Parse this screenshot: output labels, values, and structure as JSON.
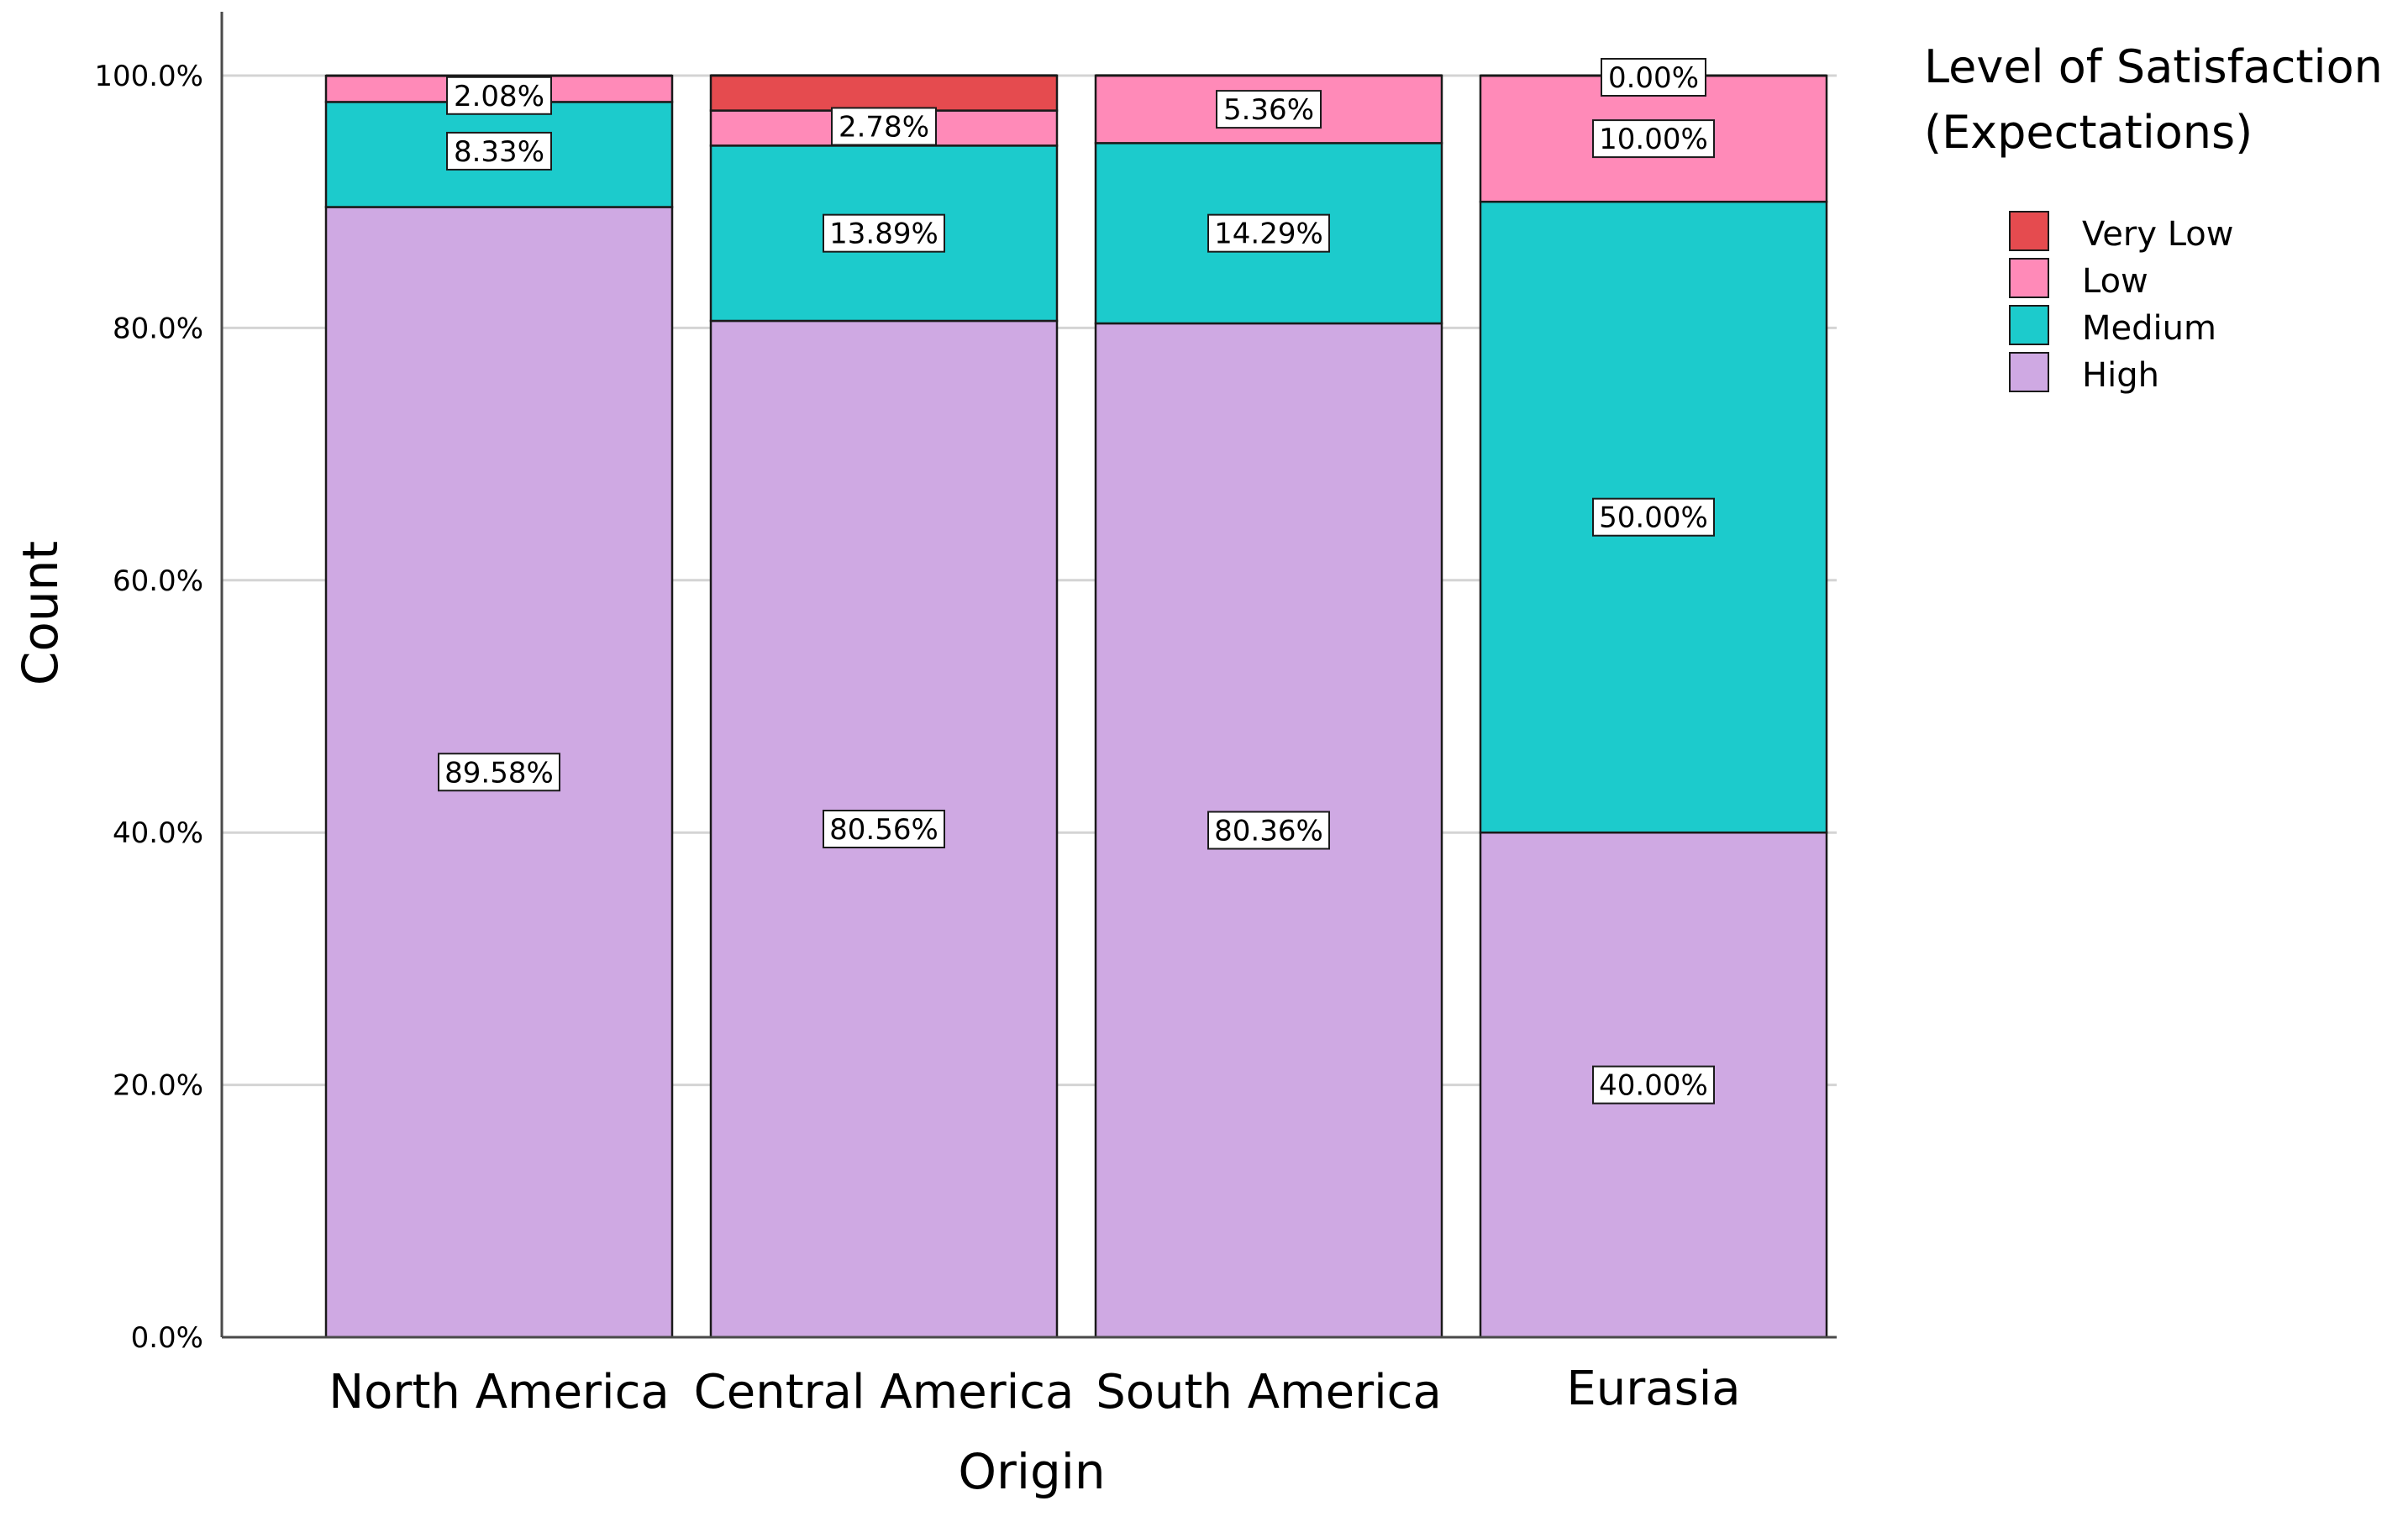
{
  "chart_data": {
    "type": "bar",
    "stacked": true,
    "xlabel": "Origin",
    "ylabel": "Count",
    "ylim": [
      0,
      100
    ],
    "y_ticks": [
      "0.0%",
      "20.0%",
      "40.0%",
      "60.0%",
      "80.0%",
      "100.0%"
    ],
    "y_tick_values": [
      0,
      20,
      40,
      60,
      80,
      100
    ],
    "categories": [
      "North America",
      "Central America",
      "South America",
      "Eurasia"
    ],
    "legend": {
      "title_lines": [
        "Level of Satisfaction",
        "(Expectations)"
      ],
      "placement": "top-right"
    },
    "series": [
      {
        "name": "High",
        "color": "#CFA9E3",
        "values": [
          89.58,
          80.56,
          80.36,
          40.0
        ],
        "labels": [
          "89.58%",
          "80.56%",
          "80.36%",
          "40.00%"
        ]
      },
      {
        "name": "Medium",
        "color": "#1CCBCC",
        "values": [
          8.33,
          13.89,
          14.29,
          50.0
        ],
        "labels": [
          "8.33%",
          "13.89%",
          "14.29%",
          "50.00%"
        ]
      },
      {
        "name": "Low",
        "color": "#FF8AB8",
        "values": [
          2.08,
          2.78,
          5.36,
          10.0
        ],
        "labels": [
          "2.08%",
          "2.78%",
          "5.36%",
          "10.00%"
        ]
      },
      {
        "name": "Very Low",
        "color": "#E54B4F",
        "values": [
          0,
          2.78,
          0,
          0.0
        ],
        "labels": [
          "",
          "",
          "",
          "0.00%"
        ]
      }
    ],
    "legend_order": [
      "Very Low",
      "Low",
      "Medium",
      "High"
    ],
    "grid": true
  }
}
